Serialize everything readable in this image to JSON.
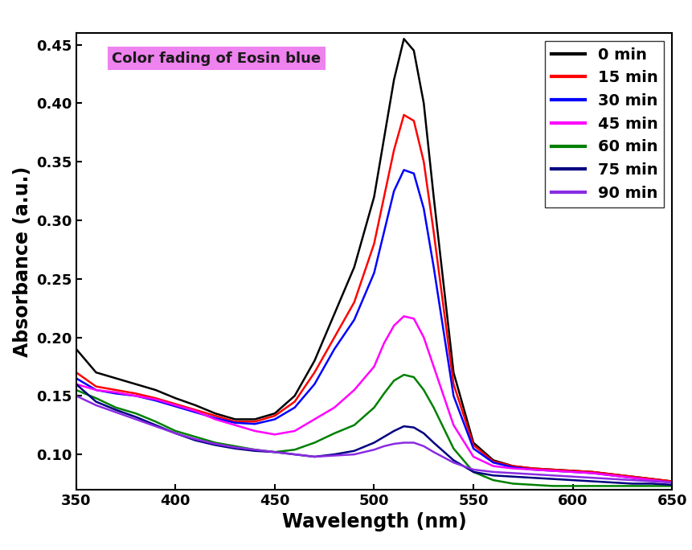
{
  "chart_data": {
    "type": "line",
    "annotation": "Color fading of Eosin blue",
    "x_label": "Wavelength (nm)",
    "y_label": "Absorbance (a.u.)",
    "x": [
      350,
      360,
      370,
      380,
      390,
      400,
      410,
      420,
      430,
      440,
      450,
      460,
      470,
      480,
      490,
      500,
      505,
      510,
      515,
      520,
      525,
      530,
      540,
      550,
      560,
      570,
      580,
      590,
      600,
      610,
      620,
      630,
      640,
      650
    ],
    "series": [
      {
        "name": "0 min",
        "color": "#000000",
        "values": [
          0.19,
          0.17,
          0.165,
          0.16,
          0.155,
          0.148,
          0.142,
          0.135,
          0.13,
          0.13,
          0.135,
          0.15,
          0.18,
          0.22,
          0.26,
          0.32,
          0.37,
          0.42,
          0.455,
          0.445,
          0.4,
          0.32,
          0.17,
          0.11,
          0.095,
          0.09,
          0.088,
          0.087,
          0.086,
          0.085,
          0.083,
          0.081,
          0.079,
          0.077
        ]
      },
      {
        "name": "15 min",
        "color": "#ff0000",
        "values": [
          0.17,
          0.158,
          0.155,
          0.152,
          0.148,
          0.143,
          0.138,
          0.133,
          0.128,
          0.128,
          0.133,
          0.145,
          0.17,
          0.2,
          0.23,
          0.28,
          0.32,
          0.36,
          0.39,
          0.385,
          0.35,
          0.29,
          0.16,
          0.108,
          0.094,
          0.09,
          0.088,
          0.087,
          0.086,
          0.085,
          0.083,
          0.081,
          0.079,
          0.077
        ]
      },
      {
        "name": "30 min",
        "color": "#0000ff",
        "values": [
          0.165,
          0.155,
          0.152,
          0.15,
          0.146,
          0.141,
          0.136,
          0.131,
          0.127,
          0.126,
          0.13,
          0.14,
          0.16,
          0.19,
          0.215,
          0.255,
          0.29,
          0.325,
          0.343,
          0.34,
          0.31,
          0.26,
          0.15,
          0.105,
          0.093,
          0.089,
          0.087,
          0.086,
          0.085,
          0.084,
          0.082,
          0.08,
          0.078,
          0.076
        ]
      },
      {
        "name": "45 min",
        "color": "#ff00ff",
        "values": [
          0.16,
          0.155,
          0.153,
          0.15,
          0.147,
          0.142,
          0.137,
          0.13,
          0.125,
          0.12,
          0.117,
          0.12,
          0.13,
          0.14,
          0.155,
          0.175,
          0.195,
          0.21,
          0.218,
          0.216,
          0.2,
          0.175,
          0.125,
          0.098,
          0.09,
          0.088,
          0.087,
          0.086,
          0.085,
          0.084,
          0.082,
          0.08,
          0.078,
          0.076
        ]
      },
      {
        "name": "60 min",
        "color": "#008000",
        "values": [
          0.155,
          0.148,
          0.14,
          0.135,
          0.128,
          0.12,
          0.115,
          0.11,
          0.107,
          0.104,
          0.102,
          0.104,
          0.11,
          0.118,
          0.125,
          0.14,
          0.152,
          0.163,
          0.168,
          0.166,
          0.155,
          0.14,
          0.105,
          0.085,
          0.078,
          0.075,
          0.074,
          0.073,
          0.073,
          0.073,
          0.073,
          0.073,
          0.073,
          0.073
        ]
      },
      {
        "name": "75 min",
        "color": "#000080",
        "values": [
          0.16,
          0.145,
          0.138,
          0.132,
          0.125,
          0.118,
          0.112,
          0.108,
          0.105,
          0.103,
          0.102,
          0.1,
          0.098,
          0.1,
          0.103,
          0.11,
          0.115,
          0.12,
          0.124,
          0.123,
          0.118,
          0.11,
          0.095,
          0.085,
          0.082,
          0.081,
          0.08,
          0.079,
          0.078,
          0.077,
          0.076,
          0.075,
          0.075,
          0.074
        ]
      },
      {
        "name": "90 min",
        "color": "#8a2be2",
        "values": [
          0.15,
          0.142,
          0.136,
          0.13,
          0.124,
          0.118,
          0.113,
          0.109,
          0.106,
          0.104,
          0.102,
          0.1,
          0.098,
          0.099,
          0.1,
          0.104,
          0.107,
          0.109,
          0.11,
          0.11,
          0.107,
          0.102,
          0.093,
          0.087,
          0.085,
          0.084,
          0.083,
          0.082,
          0.081,
          0.08,
          0.079,
          0.078,
          0.077,
          0.076
        ]
      }
    ],
    "xlim": [
      350,
      650
    ],
    "xticks": [
      350,
      400,
      450,
      500,
      550,
      600,
      650
    ],
    "ylim": [
      0.07,
      0.46
    ],
    "yticks": [
      {
        "value": 0.1,
        "label": "0.10"
      },
      0.15,
      {
        "value": 0.2,
        "label": "0.20"
      },
      0.25,
      {
        "value": 0.3,
        "label": "0.30"
      },
      0.35,
      {
        "value": 0.4,
        "label": "0.40"
      },
      0.45
    ],
    "legend": "upper right",
    "grid": false
  }
}
